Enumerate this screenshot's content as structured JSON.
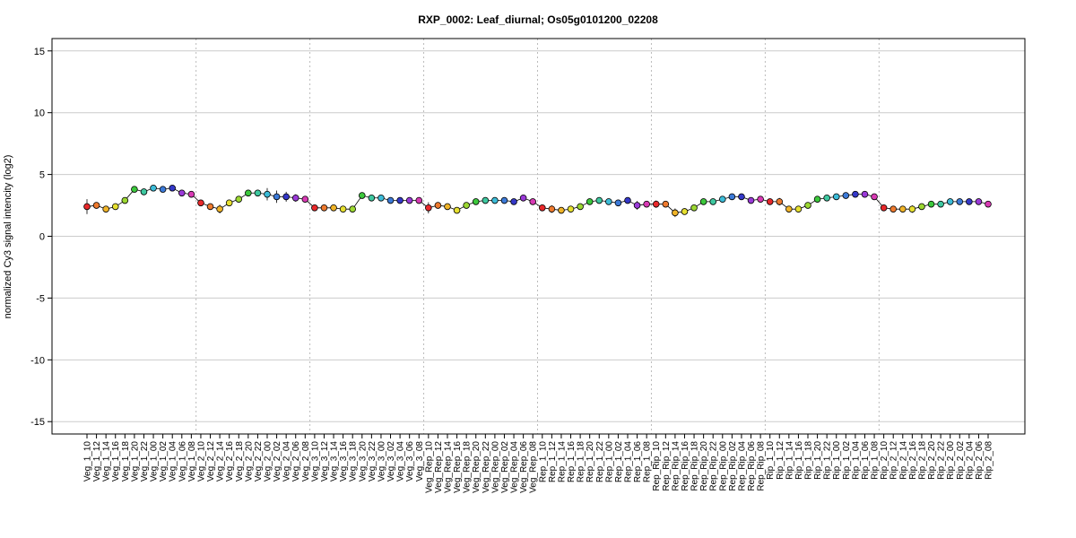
{
  "chart_data": {
    "type": "line",
    "title": "RXP_0002: Leaf_diurnal; Os05g0101200_02208",
    "ylabel": "normalized Cy3 signal intencity (log2)",
    "xlabel": "",
    "ylim": [
      -16,
      16
    ],
    "yticks": [
      -15,
      -10,
      -5,
      0,
      5,
      10,
      15
    ],
    "grid": true,
    "categories": [
      "Veg_1_10",
      "Veg_1_12",
      "Veg_1_14",
      "Veg_1_16",
      "Veg_1_18",
      "Veg_1_20",
      "Veg_1_22",
      "Veg_1_00",
      "Veg_1_02",
      "Veg_1_04",
      "Veg_1_06",
      "Veg_1_08",
      "Veg_2_10",
      "Veg_2_12",
      "Veg_2_14",
      "Veg_2_16",
      "Veg_2_18",
      "Veg_2_20",
      "Veg_2_22",
      "Veg_2_00",
      "Veg_2_02",
      "Veg_2_04",
      "Veg_2_06",
      "Veg_2_08",
      "Veg_3_10",
      "Veg_3_12",
      "Veg_3_14",
      "Veg_3_16",
      "Veg_3_18",
      "Veg_3_20",
      "Veg_3_22",
      "Veg_3_00",
      "Veg_3_02",
      "Veg_3_04",
      "Veg_3_06",
      "Veg_3_08",
      "Veg_Rep_10",
      "Veg_Rep_12",
      "Veg_Rep_14",
      "Veg_Rep_16",
      "Veg_Rep_18",
      "Veg_Rep_20",
      "Veg_Rep_22",
      "Veg_Rep_00",
      "Veg_Rep_02",
      "Veg_Rep_04",
      "Veg_Rep_06",
      "Veg_Rep_08",
      "Rep_1_10",
      "Rep_1_12",
      "Rep_1_14",
      "Rep_1_16",
      "Rep_1_18",
      "Rep_1_20",
      "Rep_1_22",
      "Rep_1_00",
      "Rep_1_02",
      "Rep_1_04",
      "Rep_1_06",
      "Rep_1_08",
      "Rep_Rip_10",
      "Rep_Rip_12",
      "Rep_Rip_14",
      "Rep_Rip_16",
      "Rep_Rip_18",
      "Rep_Rip_20",
      "Rep_Rip_22",
      "Rep_Rip_00",
      "Rep_Rip_02",
      "Rep_Rip_04",
      "Rep_Rip_06",
      "Rep_Rip_08",
      "Rip_1_10",
      "Rip_1_12",
      "Rip_1_14",
      "Rip_1_16",
      "Rip_1_18",
      "Rip_1_20",
      "Rip_1_22",
      "Rip_1_00",
      "Rip_1_02",
      "Rip_1_04",
      "Rip_1_06",
      "Rip_1_08",
      "Rip_2_10",
      "Rip_2_12",
      "Rip_2_14",
      "Rip_2_16",
      "Rip_2_18",
      "Rip_2_20",
      "Rip_2_22",
      "Rip_2_00",
      "Rip_2_02",
      "Rip_2_04",
      "Rip_2_06",
      "Rip_2_08"
    ],
    "values": [
      2.4,
      2.5,
      2.2,
      2.4,
      2.9,
      3.8,
      3.6,
      3.9,
      3.8,
      3.9,
      3.5,
      3.4,
      2.7,
      2.4,
      2.2,
      2.7,
      3.0,
      3.5,
      3.5,
      3.4,
      3.2,
      3.2,
      3.1,
      3.0,
      2.3,
      2.3,
      2.3,
      2.2,
      2.2,
      3.3,
      3.1,
      3.1,
      2.9,
      2.9,
      2.9,
      2.9,
      2.3,
      2.5,
      2.4,
      2.1,
      2.5,
      2.8,
      2.9,
      2.9,
      2.9,
      2.8,
      3.1,
      2.8,
      2.3,
      2.2,
      2.1,
      2.2,
      2.4,
      2.8,
      2.9,
      2.8,
      2.7,
      2.9,
      2.5,
      2.6,
      2.6,
      2.6,
      1.9,
      2.0,
      2.3,
      2.8,
      2.8,
      3.0,
      3.2,
      3.2,
      2.9,
      3.0,
      2.8,
      2.8,
      2.2,
      2.2,
      2.5,
      3.0,
      3.1,
      3.2,
      3.3,
      3.4,
      3.4,
      3.2,
      2.3,
      2.2,
      2.2,
      2.2,
      2.4,
      2.6,
      2.6,
      2.8,
      2.8,
      2.8,
      2.8,
      2.6
    ],
    "error": [
      0.6,
      0.1,
      0.1,
      0.1,
      0.2,
      0.1,
      0.1,
      0.1,
      0.1,
      0.1,
      0.1,
      0.1,
      0.1,
      0.1,
      0.35,
      0.1,
      0.1,
      0.1,
      0.1,
      0.5,
      0.5,
      0.4,
      0.3,
      0.1,
      0.1,
      0.1,
      0.1,
      0.1,
      0.1,
      0.1,
      0.1,
      0.1,
      0.1,
      0.1,
      0.1,
      0.1,
      0.45,
      0.1,
      0.25,
      0.1,
      0.1,
      0.1,
      0.1,
      0.1,
      0.1,
      0.1,
      0.1,
      0.1,
      0.1,
      0.3,
      0.1,
      0.1,
      0.1,
      0.1,
      0.1,
      0.1,
      0.1,
      0.1,
      0.35,
      0.1,
      0.3,
      0.1,
      0.35,
      0.1,
      0.1,
      0.1,
      0.1,
      0.1,
      0.1,
      0.1,
      0.1,
      0.1,
      0.1,
      0.3,
      0.1,
      0.1,
      0.1,
      0.1,
      0.1,
      0.1,
      0.1,
      0.1,
      0.1,
      0.1,
      0.1,
      0.1,
      0.1,
      0.3,
      0.1,
      0.1,
      0.1,
      0.1,
      0.1,
      0.1,
      0.1,
      0.1
    ],
    "group_size": 12,
    "point_colors": [
      "#e8282a",
      "#ee7a2e",
      "#f0b428",
      "#e6e030",
      "#9cd832",
      "#3cc83c",
      "#3ec8a0",
      "#3cbcd8",
      "#3c7ad8",
      "#3438c8",
      "#9a3ad8",
      "#d83ab4"
    ],
    "line_color": "#000000",
    "grid_color": "#cccccc",
    "separator_color": "#bbbbbb"
  }
}
